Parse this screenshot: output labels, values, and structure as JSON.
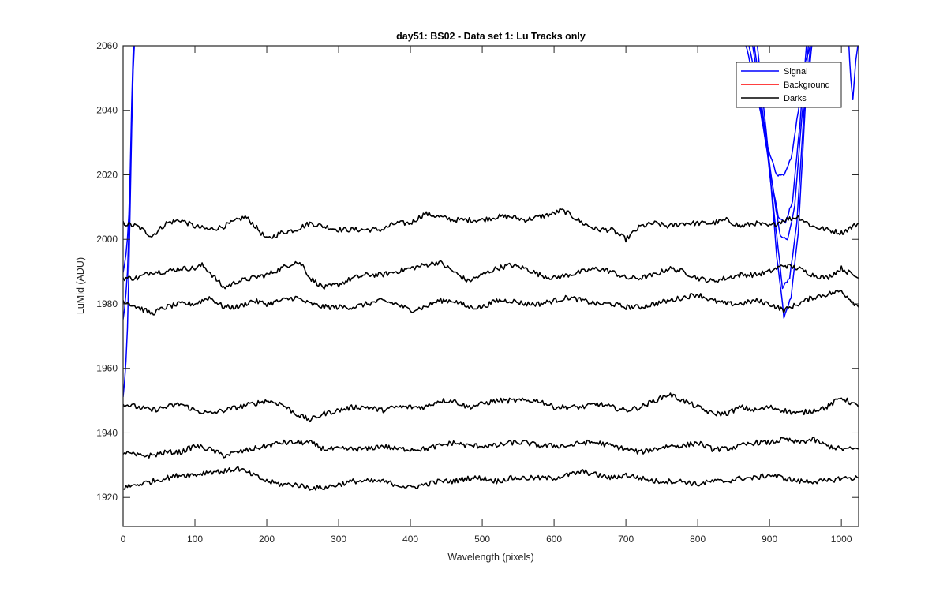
{
  "chart_data": {
    "type": "line",
    "title": "day51: BS02 - Data set 1: Lu Tracks only",
    "xlabel": "Wavelength (pixels)",
    "ylabel": "LuMid (ADU)",
    "xlim": [
      0,
      1024
    ],
    "ylim": [
      1911,
      2060
    ],
    "xticks": [
      0,
      100,
      200,
      300,
      400,
      500,
      600,
      700,
      800,
      900,
      1000
    ],
    "yticks": [
      1920,
      1940,
      1960,
      1980,
      2000,
      2020,
      2040,
      2060
    ],
    "grid": false,
    "legend": {
      "location": "top-right",
      "entries": [
        {
          "label": "Signal",
          "color": "#0000ff"
        },
        {
          "label": "Background",
          "color": "#ff0000"
        },
        {
          "label": "Darks",
          "color": "#000000"
        }
      ]
    },
    "series": [
      {
        "name": "Signal",
        "color": "#0000ff",
        "x": [
          0,
          2,
          4,
          6,
          8,
          10,
          12,
          14,
          16
        ],
        "y": [
          1951,
          1956,
          1962,
          1972,
          1990,
          2012,
          2035,
          2052,
          2062
        ]
      },
      {
        "name": "Signal",
        "color": "#0000ff",
        "x": [
          0,
          2,
          4,
          6,
          8,
          10,
          12,
          14,
          16
        ],
        "y": [
          1975,
          1978,
          1983,
          1990,
          2002,
          2018,
          2038,
          2055,
          2062
        ]
      },
      {
        "name": "Signal",
        "color": "#0000ff",
        "x": [
          0,
          2,
          4,
          6,
          8,
          10,
          12,
          14,
          16
        ],
        "y": [
          1990,
          1992,
          1995,
          2000,
          2008,
          2022,
          2042,
          2058,
          2062
        ]
      },
      {
        "name": "Signal",
        "color": "#0000ff",
        "x": [
          865,
          880,
          895,
          910,
          920,
          930,
          940,
          950,
          960
        ],
        "y": [
          2062,
          2048,
          2030,
          2020,
          2020,
          2025,
          2040,
          2055,
          2062
        ]
      },
      {
        "name": "Signal",
        "color": "#0000ff",
        "x": [
          870,
          885,
          900,
          912,
          922,
          932,
          942,
          952
        ],
        "y": [
          2062,
          2045,
          2022,
          2007,
          2005,
          2012,
          2035,
          2062
        ]
      },
      {
        "name": "Signal",
        "color": "#0000ff",
        "x": [
          875,
          890,
          905,
          915,
          925,
          935,
          945,
          955
        ],
        "y": [
          2062,
          2040,
          2015,
          2001,
          2000,
          2010,
          2038,
          2062
        ]
      },
      {
        "name": "Signal",
        "color": "#0000ff",
        "x": [
          878,
          893,
          908,
          918,
          928,
          938,
          948,
          958
        ],
        "y": [
          2062,
          2035,
          2005,
          1985,
          1988,
          2005,
          2040,
          2062
        ]
      },
      {
        "name": "Signal",
        "color": "#0000ff",
        "x": [
          882,
          897,
          910,
          920,
          930,
          940,
          950,
          960
        ],
        "y": [
          2062,
          2030,
          1995,
          1976,
          1982,
          2002,
          2042,
          2062
        ]
      },
      {
        "name": "Signal",
        "color": "#0000ff",
        "x": [
          1010,
          1013,
          1016,
          1020,
          1024
        ],
        "y": [
          2062,
          2050,
          2043,
          2055,
          2062
        ]
      },
      {
        "name": "Darks",
        "color": "#000000",
        "x": [
          0,
          20,
          40,
          60,
          80,
          100,
          120,
          140,
          160,
          170,
          180,
          200,
          220,
          240,
          260,
          280,
          300,
          320,
          340,
          360,
          380,
          400,
          420,
          440,
          460,
          480,
          500,
          520,
          540,
          560,
          580,
          600,
          610,
          620,
          640,
          660,
          680,
          700,
          720,
          740,
          760,
          780,
          800,
          820,
          840,
          860,
          880,
          900,
          920,
          940,
          960,
          980,
          1000,
          1024
        ],
        "y": [
          2005,
          2004,
          2001,
          2005,
          2006,
          2004,
          2003,
          2004,
          2006,
          2007,
          2005,
          2000,
          2002,
          2003,
          2005,
          2004,
          2003,
          2003,
          2003,
          2003,
          2005,
          2005,
          2008,
          2007,
          2006,
          2006,
          2006,
          2007,
          2007,
          2006,
          2007,
          2008,
          2009,
          2008,
          2005,
          2003,
          2003,
          2000,
          2004,
          2005,
          2004,
          2005,
          2005,
          2005,
          2006,
          2004,
          2005,
          2004,
          2006,
          2007,
          2004,
          2003,
          2002,
          2005
        ]
      },
      {
        "name": "Darks",
        "color": "#000000",
        "x": [
          0,
          20,
          40,
          60,
          80,
          100,
          110,
          120,
          140,
          160,
          180,
          200,
          220,
          240,
          250,
          260,
          280,
          300,
          320,
          340,
          360,
          380,
          400,
          420,
          440,
          460,
          480,
          500,
          520,
          540,
          560,
          580,
          600,
          620,
          640,
          660,
          680,
          700,
          720,
          740,
          760,
          780,
          800,
          820,
          840,
          860,
          880,
          900,
          920,
          940,
          960,
          980,
          1000,
          1024
        ],
        "y": [
          1988,
          1988,
          1990,
          1990,
          1991,
          1991,
          1992,
          1990,
          1985,
          1987,
          1988,
          1989,
          1991,
          1993,
          1992,
          1988,
          1985,
          1986,
          1988,
          1989,
          1989,
          1990,
          1991,
          1992,
          1993,
          1990,
          1987,
          1989,
          1991,
          1992,
          1991,
          1989,
          1988,
          1989,
          1990,
          1991,
          1990,
          1988,
          1988,
          1989,
          1991,
          1990,
          1988,
          1987,
          1988,
          1989,
          1989,
          1990,
          1992,
          1991,
          1989,
          1988,
          1991,
          1988
        ]
      },
      {
        "name": "Darks",
        "color": "#000000",
        "x": [
          0,
          20,
          40,
          60,
          80,
          100,
          120,
          140,
          160,
          180,
          200,
          220,
          240,
          260,
          280,
          300,
          320,
          340,
          360,
          380,
          400,
          420,
          440,
          460,
          480,
          500,
          520,
          540,
          560,
          580,
          600,
          620,
          640,
          660,
          680,
          700,
          720,
          740,
          760,
          780,
          800,
          820,
          840,
          860,
          880,
          900,
          920,
          940,
          960,
          980,
          1000,
          1024
        ],
        "y": [
          1981,
          1979,
          1977,
          1979,
          1980,
          1980,
          1982,
          1979,
          1979,
          1981,
          1980,
          1981,
          1982,
          1980,
          1979,
          1979,
          1979,
          1980,
          1981,
          1980,
          1978,
          1979,
          1981,
          1981,
          1979,
          1979,
          1981,
          1981,
          1980,
          1980,
          1981,
          1982,
          1981,
          1980,
          1980,
          1979,
          1979,
          1980,
          1981,
          1982,
          1983,
          1981,
          1980,
          1980,
          1981,
          1980,
          1978,
          1980,
          1982,
          1983,
          1984,
          1979
        ]
      },
      {
        "name": "Darks",
        "color": "#000000",
        "x": [
          0,
          20,
          40,
          60,
          80,
          100,
          120,
          140,
          160,
          180,
          200,
          220,
          240,
          260,
          280,
          300,
          320,
          340,
          360,
          380,
          400,
          420,
          440,
          460,
          480,
          500,
          520,
          540,
          560,
          580,
          600,
          620,
          640,
          660,
          680,
          700,
          720,
          740,
          760,
          780,
          800,
          820,
          840,
          860,
          880,
          900,
          920,
          940,
          960,
          980,
          1000,
          1024
        ],
        "y": [
          1949,
          1948,
          1947,
          1948,
          1949,
          1947,
          1946,
          1947,
          1948,
          1949,
          1950,
          1949,
          1946,
          1944,
          1946,
          1947,
          1948,
          1948,
          1947,
          1948,
          1948,
          1948,
          1950,
          1950,
          1948,
          1949,
          1950,
          1950,
          1950,
          1950,
          1948,
          1948,
          1948,
          1949,
          1948,
          1947,
          1948,
          1950,
          1952,
          1950,
          1948,
          1946,
          1946,
          1948,
          1947,
          1948,
          1947,
          1946,
          1947,
          1948,
          1951,
          1948
        ]
      },
      {
        "name": "Darks",
        "color": "#000000",
        "x": [
          0,
          20,
          40,
          60,
          80,
          100,
          120,
          140,
          160,
          180,
          200,
          220,
          240,
          260,
          280,
          300,
          320,
          340,
          360,
          380,
          400,
          420,
          440,
          460,
          480,
          500,
          520,
          540,
          560,
          580,
          600,
          620,
          640,
          660,
          680,
          700,
          720,
          740,
          760,
          780,
          800,
          820,
          840,
          860,
          880,
          900,
          920,
          940,
          960,
          980,
          1000,
          1024
        ],
        "y": [
          1934,
          1933,
          1933,
          1934,
          1934,
          1936,
          1935,
          1933,
          1934,
          1935,
          1936,
          1937,
          1937,
          1937,
          1935,
          1935,
          1935,
          1935,
          1936,
          1935,
          1935,
          1935,
          1936,
          1937,
          1936,
          1936,
          1936,
          1937,
          1937,
          1936,
          1936,
          1936,
          1937,
          1937,
          1936,
          1935,
          1934,
          1935,
          1936,
          1936,
          1937,
          1935,
          1935,
          1936,
          1937,
          1937,
          1938,
          1937,
          1938,
          1936,
          1935,
          1935
        ]
      },
      {
        "name": "Darks",
        "color": "#000000",
        "x": [
          0,
          20,
          40,
          60,
          80,
          100,
          120,
          140,
          160,
          180,
          200,
          220,
          240,
          260,
          280,
          300,
          320,
          340,
          360,
          380,
          400,
          420,
          440,
          460,
          480,
          500,
          520,
          540,
          560,
          580,
          600,
          620,
          640,
          660,
          680,
          700,
          720,
          740,
          760,
          780,
          800,
          820,
          840,
          860,
          880,
          900,
          920,
          940,
          960,
          980,
          1000,
          1024
        ],
        "y": [
          1923,
          1924,
          1925,
          1926,
          1927,
          1927,
          1928,
          1928,
          1929,
          1927,
          1925,
          1924,
          1924,
          1923,
          1923,
          1924,
          1925,
          1925,
          1925,
          1924,
          1923,
          1924,
          1925,
          1925,
          1926,
          1926,
          1925,
          1926,
          1926,
          1926,
          1926,
          1927,
          1928,
          1927,
          1926,
          1927,
          1926,
          1925,
          1925,
          1925,
          1924,
          1925,
          1925,
          1926,
          1926,
          1927,
          1926,
          1925,
          1925,
          1925,
          1926,
          1926
        ]
      }
    ]
  }
}
